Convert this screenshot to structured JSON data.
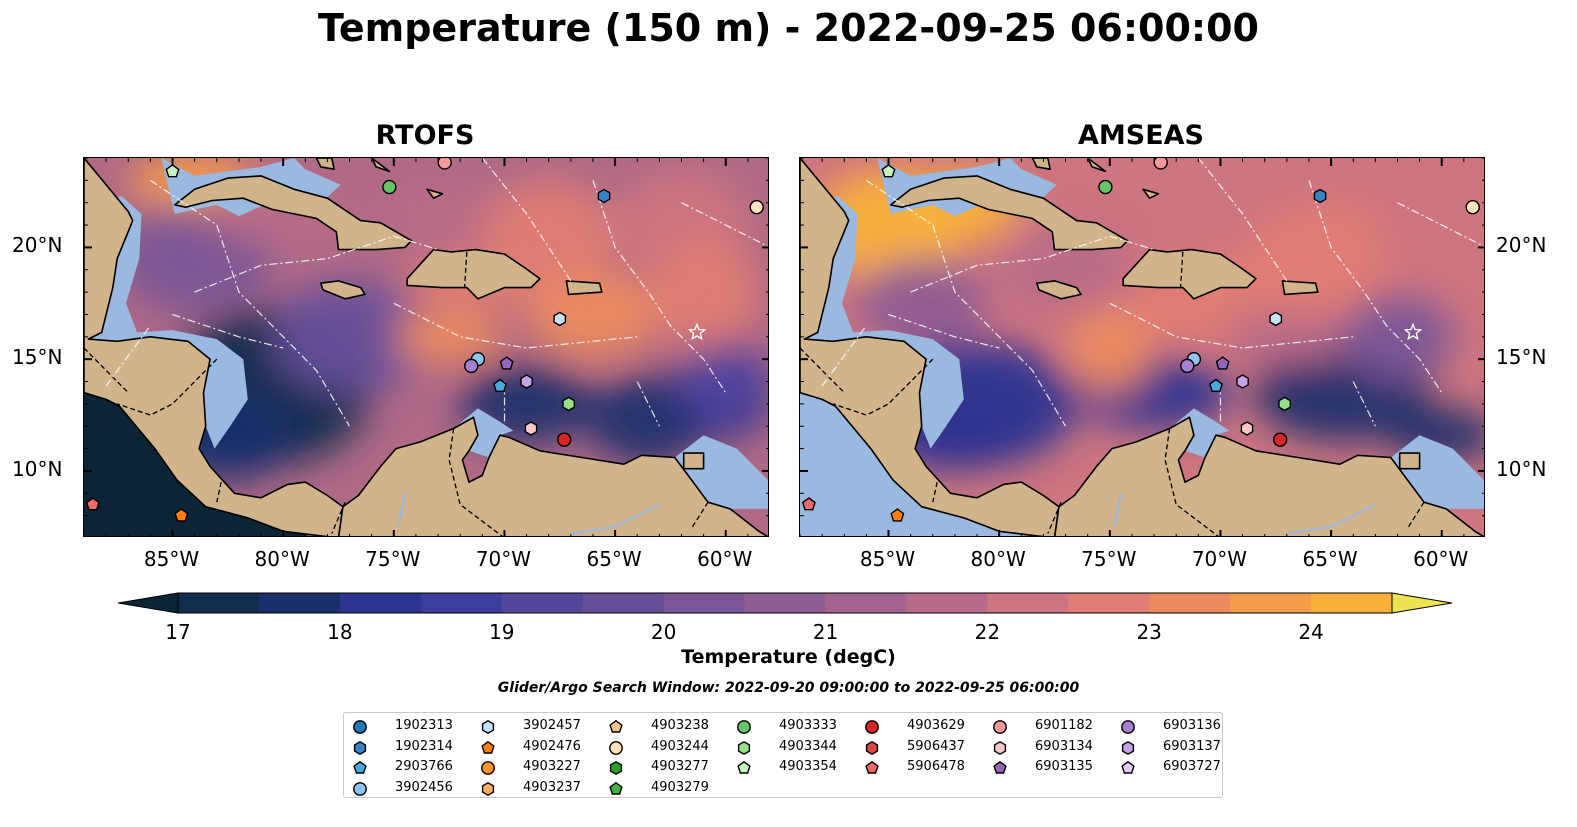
{
  "title": "Temperature (150 m) - 2022-09-25 06:00:00",
  "panels": [
    {
      "title": "RTOFS"
    },
    {
      "title": "AMSEAS"
    }
  ],
  "lon_ticks": [
    "85°W",
    "80°W",
    "75°W",
    "70°W",
    "65°W",
    "60°W"
  ],
  "lat_ticks": [
    "20°N",
    "15°N",
    "10°N"
  ],
  "map_extent": {
    "lon": [
      -89,
      -58
    ],
    "lat": [
      7,
      24
    ]
  },
  "colorbar": {
    "label": "Temperature (degC)",
    "ticks": [
      "17",
      "18",
      "19",
      "20",
      "21",
      "22",
      "23",
      "24"
    ],
    "min": 17,
    "max": 24.5,
    "step": 0.5,
    "extend": "both",
    "palette": [
      "#0b2537",
      "#102d4e",
      "#1a2f6b",
      "#2d3390",
      "#3d3d9c",
      "#53479c",
      "#664f99",
      "#7a5696",
      "#8e5d92",
      "#a3638e",
      "#b86b88",
      "#cd7581",
      "#e07d74",
      "#ec8b60",
      "#f59c4a",
      "#f9b13c",
      "#f6cb44",
      "#eee352"
    ]
  },
  "search_window": "Glider/Argo Search Window: 2022-09-20 09:00:00 to 2022-09-25 06:00:00",
  "colors": {
    "land": "#d2b48c",
    "shallow_water": "#9bb8e0"
  },
  "legend": {
    "columns": [
      [
        {
          "id": "1902313",
          "marker": "circle",
          "color": "#1f77b4"
        },
        {
          "id": "1902314",
          "marker": "hexagon",
          "color": "#3b82c4"
        },
        {
          "id": "2903766",
          "marker": "pentagon",
          "color": "#4aa8e0"
        },
        {
          "id": "3902456",
          "marker": "circle",
          "color": "#8fc4ec"
        }
      ],
      [
        {
          "id": "3902457",
          "marker": "hexagon",
          "color": "#c6e2f8"
        },
        {
          "id": "4902476",
          "marker": "pentagon",
          "color": "#ff7f0e"
        },
        {
          "id": "4903227",
          "marker": "circle",
          "color": "#ff9430"
        },
        {
          "id": "4903237",
          "marker": "hexagon",
          "color": "#ffb062"
        }
      ],
      [
        {
          "id": "4903238",
          "marker": "pentagon",
          "color": "#ffc58f"
        },
        {
          "id": "4903244",
          "marker": "circle",
          "color": "#ffe2c3"
        },
        {
          "id": "4903277",
          "marker": "hexagon",
          "color": "#2ca02c"
        },
        {
          "id": "4903279",
          "marker": "pentagon",
          "color": "#3cb43c"
        }
      ],
      [
        {
          "id": "4903333",
          "marker": "circle",
          "color": "#66c466"
        },
        {
          "id": "4903344",
          "marker": "hexagon",
          "color": "#98df8a"
        },
        {
          "id": "4903354",
          "marker": "pentagon",
          "color": "#c8f0c0"
        }
      ],
      [
        {
          "id": "4903629",
          "marker": "circle",
          "color": "#d62728"
        },
        {
          "id": "5906437",
          "marker": "hexagon",
          "color": "#e04848"
        },
        {
          "id": "5906478",
          "marker": "pentagon",
          "color": "#ee6a6a"
        }
      ],
      [
        {
          "id": "6901182",
          "marker": "circle",
          "color": "#f29a9a"
        },
        {
          "id": "6903134",
          "marker": "hexagon",
          "color": "#f8c8c8"
        },
        {
          "id": "6903135",
          "marker": "pentagon",
          "color": "#9467bd"
        }
      ],
      [
        {
          "id": "6903136",
          "marker": "circle",
          "color": "#a77fd0"
        },
        {
          "id": "6903137",
          "marker": "hexagon",
          "color": "#c5a3e6"
        },
        {
          "id": "6903727",
          "marker": "pentagon",
          "color": "#e3ccf7"
        }
      ]
    ]
  },
  "floats": [
    {
      "id": "4903354",
      "lon": -85.0,
      "lat": 23.4
    },
    {
      "id": "4903333",
      "lon": -75.2,
      "lat": 22.7
    },
    {
      "id": "6901182",
      "lon": -72.7,
      "lat": 23.8
    },
    {
      "id": "1902314",
      "lon": -65.5,
      "lat": 22.3
    },
    {
      "id": "4903244",
      "lon": -58.6,
      "lat": 21.8
    },
    {
      "id": "3902457",
      "lon": -67.5,
      "lat": 16.8
    },
    {
      "id": "3902456",
      "lon": -71.2,
      "lat": 15.0
    },
    {
      "id": "6903136",
      "lon": -71.5,
      "lat": 14.7
    },
    {
      "id": "6903135",
      "lon": -69.9,
      "lat": 14.8
    },
    {
      "id": "2903766",
      "lon": -70.2,
      "lat": 13.8
    },
    {
      "id": "6903137",
      "lon": -69.0,
      "lat": 14.0
    },
    {
      "id": "4903344",
      "lon": -67.1,
      "lat": 13.0
    },
    {
      "id": "6903134",
      "lon": -68.8,
      "lat": 11.9
    },
    {
      "id": "4903629",
      "lon": -67.3,
      "lat": 11.4
    },
    {
      "id": "5906478",
      "lon": -88.6,
      "lat": 8.5
    },
    {
      "id": "4902476",
      "lon": -84.6,
      "lat": 8.0
    }
  ]
}
